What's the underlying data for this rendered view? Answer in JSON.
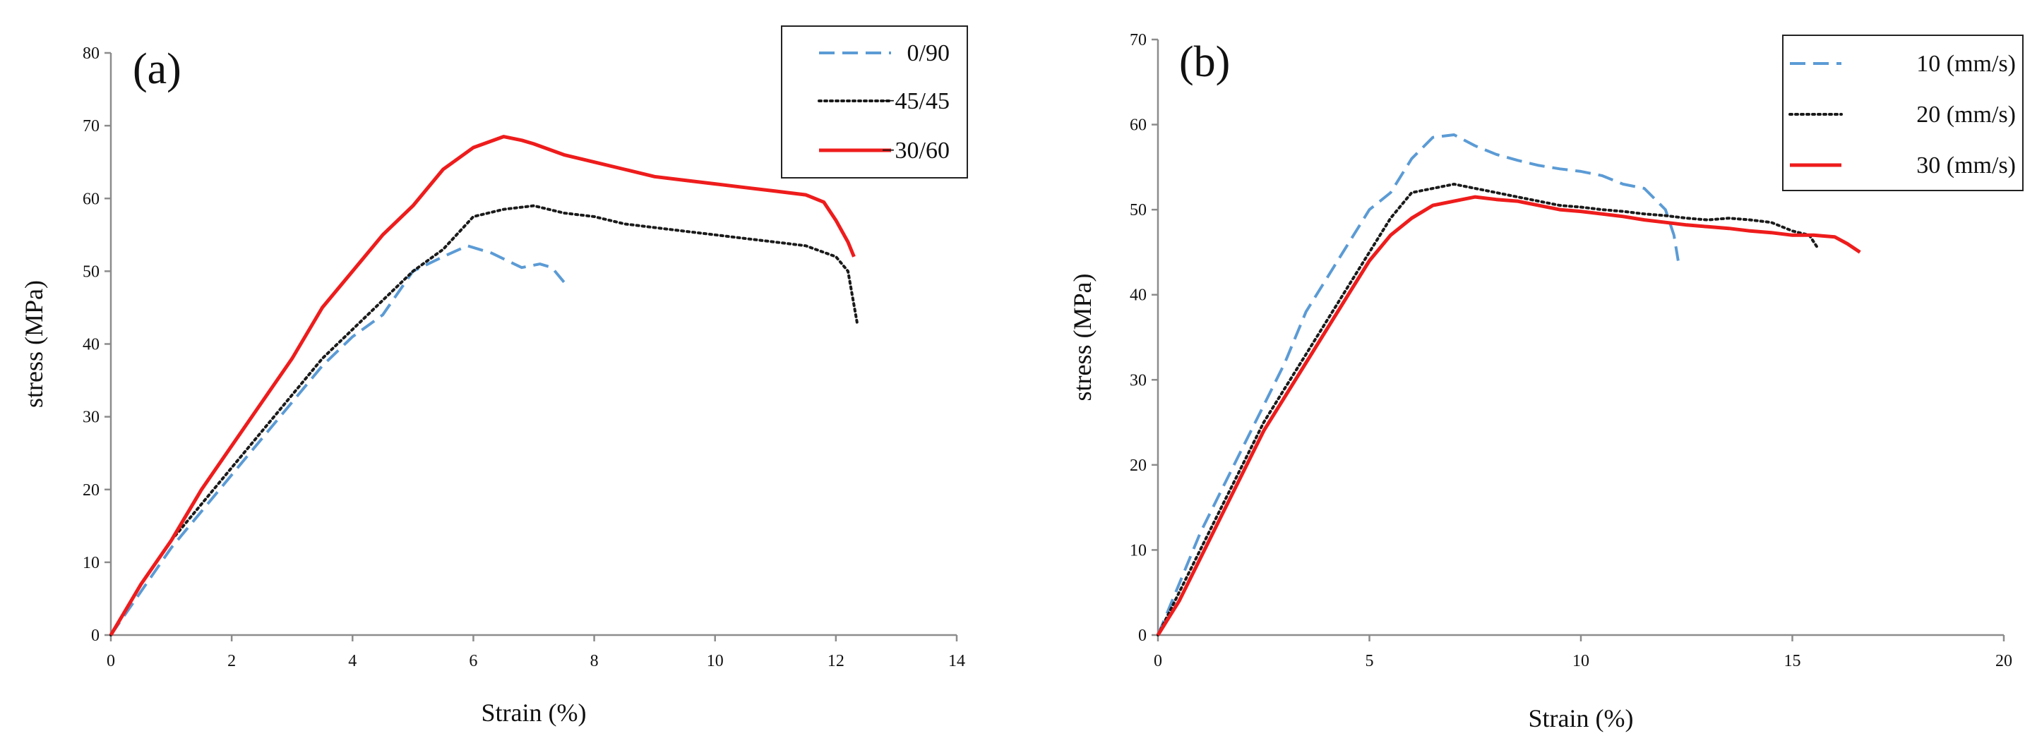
{
  "colors": {
    "dashed_blue": "#5b9bd5",
    "dotted_black": "#1a1a1a",
    "solid_red": "#ee1c1c",
    "axis_gray": "#8c8c8c"
  },
  "chart_data": [
    {
      "type": "line",
      "panel_label": "(a)",
      "title": "",
      "xlabel": "Strain (%)",
      "ylabel": "stress (MPa)",
      "xlim": [
        0,
        14
      ],
      "ylim": [
        0,
        80
      ],
      "xticks": [
        0,
        2,
        4,
        6,
        8,
        10,
        12,
        14
      ],
      "yticks": [
        0,
        10,
        20,
        30,
        40,
        50,
        60,
        70,
        80
      ],
      "legend_position": "top-right",
      "series": [
        {
          "name": "0/90",
          "style": "dashed",
          "color": "#5b9bd5",
          "x": [
            0,
            0.5,
            1.0,
            1.5,
            2.0,
            2.5,
            3.0,
            3.5,
            4.0,
            4.5,
            5.0,
            5.5,
            5.9,
            6.3,
            6.8,
            7.1,
            7.3,
            7.5
          ],
          "y": [
            0,
            6,
            12,
            17,
            22,
            27,
            32,
            37,
            41,
            44,
            50,
            52,
            53.5,
            52.5,
            50.5,
            51,
            50.5,
            48.5
          ]
        },
        {
          "name": "−45/45",
          "style": "dotted",
          "color": "#1a1a1a",
          "x": [
            0,
            0.5,
            1.0,
            1.5,
            2.0,
            2.5,
            3.0,
            3.5,
            4.0,
            4.5,
            5.0,
            5.5,
            6.0,
            6.5,
            7.0,
            7.5,
            8.0,
            8.5,
            9.0,
            9.5,
            10.0,
            10.5,
            11.0,
            11.5,
            12.0,
            12.2,
            12.35
          ],
          "y": [
            0,
            7,
            13,
            18,
            23,
            28,
            33,
            38,
            42,
            46,
            50,
            53,
            57.5,
            58.5,
            59,
            58,
            57.5,
            56.5,
            56,
            55.5,
            55,
            54.5,
            54,
            53.5,
            52,
            50,
            43
          ]
        },
        {
          "name": "−30/60",
          "style": "solid",
          "color": "#ee1c1c",
          "x": [
            0,
            0.5,
            1.0,
            1.5,
            2.0,
            2.5,
            3.0,
            3.5,
            4.0,
            4.5,
            5.0,
            5.5,
            6.0,
            6.5,
            6.8,
            7.0,
            7.5,
            8.0,
            8.5,
            9.0,
            9.5,
            10.0,
            10.5,
            11.0,
            11.5,
            11.8,
            12.0,
            12.2,
            12.3
          ],
          "y": [
            0,
            7,
            13,
            20,
            26,
            32,
            38,
            45,
            50,
            55,
            59,
            64,
            67,
            68.5,
            68,
            67.5,
            66,
            65,
            64,
            63,
            62.5,
            62,
            61.5,
            61,
            60.5,
            59.5,
            57,
            54,
            52
          ]
        }
      ]
    },
    {
      "type": "line",
      "panel_label": "(b)",
      "title": "",
      "xlabel": "Strain (%)",
      "ylabel": "stress (MPa)",
      "xlim": [
        0,
        20
      ],
      "ylim": [
        0,
        70
      ],
      "xticks": [
        0,
        5,
        10,
        15,
        20
      ],
      "yticks": [
        0,
        10,
        20,
        30,
        40,
        50,
        60,
        70
      ],
      "legend_position": "top-right",
      "series": [
        {
          "name": "10 (mm/s)",
          "style": "dashed",
          "color": "#5b9bd5",
          "x": [
            0,
            0.5,
            1.0,
            1.5,
            2.0,
            2.5,
            3.0,
            3.5,
            4.0,
            4.5,
            5.0,
            5.5,
            6.0,
            6.5,
            7.0,
            7.5,
            8.0,
            8.5,
            9.0,
            9.5,
            10.0,
            10.5,
            11.0,
            11.5,
            12.0,
            12.2,
            12.3
          ],
          "y": [
            0,
            6,
            12,
            17,
            22,
            27,
            32,
            38,
            42,
            46,
            50,
            52,
            56,
            58.5,
            58.8,
            57.5,
            56.5,
            55.8,
            55.2,
            54.8,
            54.5,
            54,
            53,
            52.5,
            50,
            47,
            44
          ]
        },
        {
          "name": "20 (mm/s)",
          "style": "dotted",
          "color": "#1a1a1a",
          "x": [
            0,
            0.5,
            1.0,
            1.5,
            2.0,
            2.5,
            3.0,
            3.5,
            4.0,
            4.5,
            5.0,
            5.5,
            6.0,
            6.5,
            7.0,
            7.5,
            8.0,
            8.5,
            9.0,
            9.5,
            10.0,
            10.5,
            11.0,
            11.5,
            12.0,
            12.5,
            13.0,
            13.5,
            14.0,
            14.5,
            15.0,
            15.4,
            15.6
          ],
          "y": [
            0,
            5,
            10,
            15,
            20,
            25,
            29,
            33,
            37,
            41,
            45,
            49,
            52,
            52.5,
            53,
            52.5,
            52,
            51.5,
            51,
            50.5,
            50.3,
            50,
            49.8,
            49.5,
            49.3,
            49,
            48.8,
            49,
            48.8,
            48.5,
            47.5,
            47,
            45.5
          ]
        },
        {
          "name": "30 (mm/s)",
          "style": "solid",
          "color": "#ee1c1c",
          "x": [
            0,
            0.5,
            1.0,
            1.5,
            2.0,
            2.5,
            3.0,
            3.5,
            4.0,
            4.5,
            5.0,
            5.5,
            6.0,
            6.5,
            7.0,
            7.5,
            8.0,
            8.5,
            9.0,
            9.5,
            10.0,
            10.5,
            11.0,
            11.5,
            12.0,
            12.5,
            13.0,
            13.5,
            14.0,
            14.5,
            15.0,
            15.5,
            16.0,
            16.3,
            16.6
          ],
          "y": [
            0,
            4,
            9,
            14,
            19,
            24,
            28,
            32,
            36,
            40,
            44,
            47,
            49,
            50.5,
            51,
            51.5,
            51.2,
            51,
            50.5,
            50,
            49.8,
            49.5,
            49.2,
            48.8,
            48.5,
            48.2,
            48,
            47.8,
            47.5,
            47.3,
            47,
            47,
            46.8,
            46,
            45
          ]
        }
      ]
    }
  ]
}
